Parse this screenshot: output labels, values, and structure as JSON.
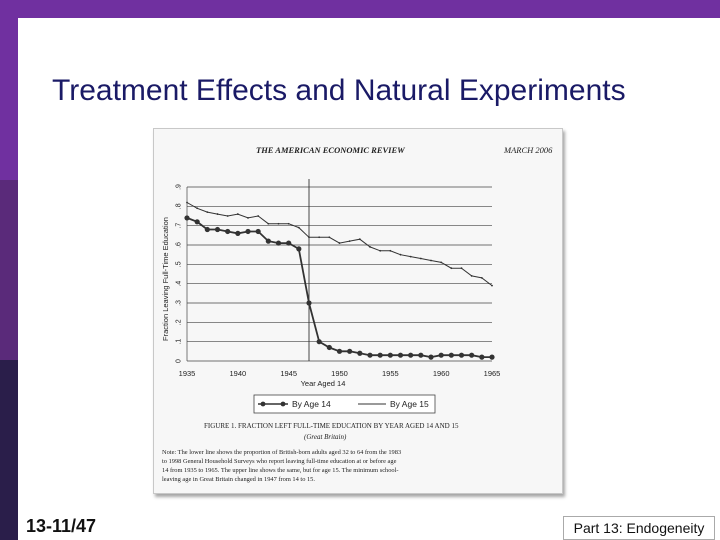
{
  "slide": {
    "title": "Treatment Effects and Natural Experiments",
    "number": "13-11/47",
    "footer": "Part 13: Endogeneity"
  },
  "figure": {
    "journal": "THE AMERICAN ECONOMIC REVIEW",
    "issue": "MARCH 2006",
    "caption_title": "FIGURE 1. FRACTION LEFT FULL-TIME EDUCATION BY YEAR AGED 14 AND 15",
    "caption_subtitle": "(Great Britain)",
    "note_lines": [
      "Note: The lower line shows the proportion of British-born adults aged 32 to 64 from the 1983",
      "to 1998 General Household Surveys who report leaving full-time education at or before age",
      "14 from 1935 to 1965. The upper line shows the same, but for age 15. The minimum school-",
      "leaving age in Great Britain changed in 1947 from 14 to 15."
    ]
  },
  "chart_data": {
    "type": "line",
    "title": "",
    "xlabel": "Year Aged 14",
    "ylabel": "Fraction Leaving Full-Time Education",
    "xlim": [
      1935,
      1965
    ],
    "ylim": [
      0,
      0.9
    ],
    "x_ticks": [
      "1935",
      "1940",
      "1945",
      "1950",
      "1955",
      "1960",
      "1965"
    ],
    "y_ticks": [
      "0",
      ".1",
      ".2",
      ".3",
      ".4",
      ".5",
      ".6",
      ".7",
      ".8",
      ".9"
    ],
    "vertical_line_x": 1947,
    "grid": "horizontal",
    "legend_position": "bottom",
    "series": [
      {
        "name": "By Age 14",
        "marker": "filled-circle",
        "x": [
          1935,
          1936,
          1937,
          1938,
          1939,
          1940,
          1941,
          1942,
          1943,
          1944,
          1945,
          1946,
          1947,
          1948,
          1949,
          1950,
          1951,
          1952,
          1953,
          1954,
          1955,
          1956,
          1957,
          1958,
          1959,
          1960,
          1961,
          1962,
          1963,
          1964,
          1965
        ],
        "values": [
          0.74,
          0.72,
          0.68,
          0.68,
          0.67,
          0.66,
          0.67,
          0.67,
          0.62,
          0.61,
          0.61,
          0.58,
          0.3,
          0.1,
          0.07,
          0.05,
          0.05,
          0.04,
          0.03,
          0.03,
          0.03,
          0.03,
          0.03,
          0.03,
          0.02,
          0.03,
          0.03,
          0.03,
          0.03,
          0.02,
          0.02
        ]
      },
      {
        "name": "By Age 15",
        "marker": "small-dot",
        "x": [
          1935,
          1936,
          1937,
          1938,
          1939,
          1940,
          1941,
          1942,
          1943,
          1944,
          1945,
          1946,
          1947,
          1948,
          1949,
          1950,
          1951,
          1952,
          1953,
          1954,
          1955,
          1956,
          1957,
          1958,
          1959,
          1960,
          1961,
          1962,
          1963,
          1964,
          1965
        ],
        "values": [
          0.82,
          0.79,
          0.77,
          0.76,
          0.75,
          0.76,
          0.74,
          0.75,
          0.71,
          0.71,
          0.71,
          0.69,
          0.64,
          0.64,
          0.64,
          0.61,
          0.62,
          0.63,
          0.59,
          0.57,
          0.57,
          0.55,
          0.54,
          0.53,
          0.52,
          0.51,
          0.48,
          0.48,
          0.44,
          0.43,
          0.39
        ]
      }
    ]
  }
}
